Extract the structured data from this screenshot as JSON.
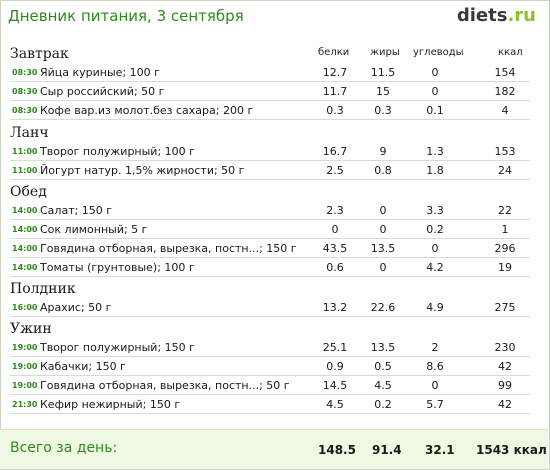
{
  "title": "Дневник питания, 3 сентября",
  "logo": {
    "brand": "diets",
    "tld": ".ru"
  },
  "headers": {
    "protein": "белки",
    "fat": "жиры",
    "carbs": "углеводы",
    "kcal": "ккал"
  },
  "meals": [
    {
      "name": "Завтрак",
      "items": [
        {
          "time": "08:30",
          "food": "Яйца куриные; 100 г",
          "protein": "12.7",
          "fat": "11.5",
          "carbs": "0",
          "kcal": "154"
        },
        {
          "time": "08:30",
          "food": "Сыр российский; 50 г",
          "protein": "11.7",
          "fat": "15",
          "carbs": "0",
          "kcal": "182"
        },
        {
          "time": "08:30",
          "food": "Кофе вар.из молот.без сахара; 200 г",
          "protein": "0.3",
          "fat": "0.3",
          "carbs": "0.1",
          "kcal": "4"
        }
      ]
    },
    {
      "name": "Ланч",
      "items": [
        {
          "time": "11:00",
          "food": "Творог полужирный; 100 г",
          "protein": "16.7",
          "fat": "9",
          "carbs": "1.3",
          "kcal": "153"
        },
        {
          "time": "11:00",
          "food": "Йогурт натур. 1,5% жирности; 50 г",
          "protein": "2.5",
          "fat": "0.8",
          "carbs": "1.8",
          "kcal": "24"
        }
      ]
    },
    {
      "name": "Обед",
      "items": [
        {
          "time": "14:00",
          "food": "Салат; 150 г",
          "protein": "2.3",
          "fat": "0",
          "carbs": "3.3",
          "kcal": "22"
        },
        {
          "time": "14:00",
          "food": "Сок лимонный; 5 г",
          "protein": "0",
          "fat": "0",
          "carbs": "0.2",
          "kcal": "1"
        },
        {
          "time": "14:00",
          "food": "Говядина отборная, вырезка, постн...; 150 г",
          "protein": "43.5",
          "fat": "13.5",
          "carbs": "0",
          "kcal": "296"
        },
        {
          "time": "14:00",
          "food": "Томаты (грунтовые); 100 г",
          "protein": "0.6",
          "fat": "0",
          "carbs": "4.2",
          "kcal": "19"
        }
      ]
    },
    {
      "name": "Полдник",
      "items": [
        {
          "time": "16:00",
          "food": "Арахис; 50 г",
          "protein": "13.2",
          "fat": "22.6",
          "carbs": "4.9",
          "kcal": "275"
        }
      ]
    },
    {
      "name": "Ужин",
      "items": [
        {
          "time": "19:00",
          "food": "Творог полужирный; 150 г",
          "protein": "25.1",
          "fat": "13.5",
          "carbs": "2",
          "kcal": "230"
        },
        {
          "time": "19:00",
          "food": "Кабачки; 150 г",
          "protein": "0.9",
          "fat": "0.5",
          "carbs": "8.6",
          "kcal": "42"
        },
        {
          "time": "19:00",
          "food": "Говядина отборная, вырезка, постн...; 50 г",
          "protein": "14.5",
          "fat": "4.5",
          "carbs": "0",
          "kcal": "99"
        },
        {
          "time": "21:30",
          "food": "Кефир нежирный; 150 г",
          "protein": "4.5",
          "fat": "0.2",
          "carbs": "5.7",
          "kcal": "42"
        }
      ]
    }
  ],
  "total": {
    "label": "Всего за день:",
    "protein": "148.5",
    "fat": "91.4",
    "carbs": "32.1",
    "kcal": "1543 ккал"
  },
  "colors": {
    "accent": "#2f8a1e",
    "logo_tld": "#8fc22a",
    "total_bg": "#eff8e2"
  }
}
